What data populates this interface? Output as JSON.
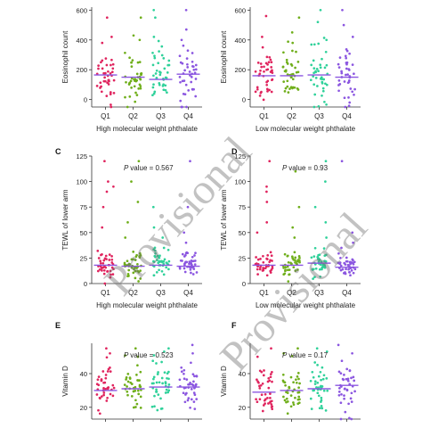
{
  "watermark": "Provisional",
  "colors": {
    "Q1": "#e0245e",
    "Q2": "#6fae1a",
    "Q3": "#2fd19a",
    "Q4": "#8b56e0",
    "median": "#8b56e0",
    "axis": "#333333"
  },
  "chart_data": [
    {
      "type": "scatter",
      "panel_letter": "",
      "xlabel": "High molecular weight phthalate",
      "ylabel": "Eosinophil count",
      "categories": [
        "Q1",
        "Q2",
        "Q3",
        "Q4"
      ],
      "yticks": [
        0,
        200,
        400,
        600
      ],
      "ylim": [
        -50,
        620
      ],
      "p_value_text": "",
      "medians": [
        165,
        150,
        135,
        170
      ],
      "centers": [
        150,
        150,
        155,
        160
      ],
      "spreads": [
        90,
        90,
        95,
        100
      ],
      "highs": [
        [
          550,
          420,
          380
        ],
        [
          550,
          430,
          400
        ],
        [
          600,
          550,
          420
        ],
        [
          600,
          470,
          400
        ]
      ]
    },
    {
      "type": "scatter",
      "panel_letter": "",
      "xlabel": "Low molecular weight phthalate",
      "ylabel": "Eosinophil count",
      "categories": [
        "Q1",
        "Q2",
        "Q3",
        "Q4"
      ],
      "yticks": [
        0,
        200,
        400,
        600
      ],
      "ylim": [
        -50,
        620
      ],
      "p_value_text": "",
      "medians": [
        160,
        160,
        165,
        150
      ],
      "centers": [
        150,
        150,
        155,
        150
      ],
      "spreads": [
        90,
        90,
        95,
        95
      ],
      "highs": [
        [
          560,
          420,
          350
        ],
        [
          550,
          450,
          380
        ],
        [
          600,
          520,
          400
        ],
        [
          600,
          500,
          420
        ]
      ]
    },
    {
      "type": "scatter",
      "panel_letter": "C",
      "xlabel": "High molecular weight phthalate",
      "ylabel": "TEWL of lower arm",
      "categories": [
        "Q1",
        "Q2",
        "Q3",
        "Q4"
      ],
      "yticks": [
        0,
        25,
        50,
        75,
        100,
        125
      ],
      "ylim": [
        0,
        125
      ],
      "p_value_text": "P value = 0.567",
      "medians": [
        18,
        17,
        18,
        17
      ],
      "centers": [
        18,
        18,
        19,
        19
      ],
      "spreads": [
        6,
        6,
        6,
        6
      ],
      "highs": [
        [
          120,
          100,
          95,
          90,
          75,
          55
        ],
        [
          120,
          100,
          80,
          60,
          45
        ],
        [
          75,
          55,
          45,
          35
        ],
        [
          120,
          75,
          50,
          40,
          30
        ]
      ]
    },
    {
      "type": "scatter",
      "panel_letter": "D",
      "xlabel": "Low molecular weight phthalate",
      "ylabel": "TEWL of lower arm",
      "categories": [
        "Q1",
        "Q2",
        "Q3",
        "Q4"
      ],
      "yticks": [
        0,
        25,
        50,
        75,
        100,
        125
      ],
      "ylim": [
        0,
        125
      ],
      "p_value_text": "P value = 0.93",
      "medians": [
        18,
        18,
        20,
        16
      ],
      "centers": [
        18,
        18,
        20,
        17
      ],
      "spreads": [
        6,
        6,
        6,
        5
      ],
      "highs": [
        [
          120,
          95,
          90,
          80,
          60,
          50
        ],
        [
          110,
          75,
          55,
          45
        ],
        [
          120,
          100,
          75,
          60,
          45
        ],
        [
          120,
          50,
          40,
          35
        ]
      ]
    },
    {
      "type": "scatter",
      "panel_letter": "E",
      "xlabel": "",
      "ylabel": "Vitamin D",
      "categories": [
        "Q1",
        "Q2",
        "Q3",
        "Q4"
      ],
      "yticks": [
        20,
        40
      ],
      "ylim": [
        13,
        58
      ],
      "p_value_text": "P value = 0.523",
      "medians": [
        30,
        31,
        32,
        32
      ],
      "centers": [
        31,
        32,
        33,
        33
      ],
      "spreads": [
        7,
        7,
        7,
        7
      ],
      "highs": [
        [
          55,
          52
        ],
        [
          55,
          50
        ],
        [
          55,
          53
        ],
        [
          57,
          52
        ]
      ]
    },
    {
      "type": "scatter",
      "panel_letter": "F",
      "xlabel": "",
      "ylabel": "Vitamin D",
      "categories": [
        "Q1",
        "Q2",
        "Q3",
        "Q4"
      ],
      "yticks": [
        20,
        40
      ],
      "ylim": [
        13,
        58
      ],
      "p_value_text": "P value = 0.17",
      "medians": [
        29,
        30,
        31,
        33
      ],
      "centers": [
        30,
        31,
        32,
        33
      ],
      "spreads": [
        7,
        7,
        7,
        7
      ],
      "highs": [
        [
          55,
          50
        ],
        [
          55,
          52
        ],
        [
          55,
          53
        ],
        [
          57,
          52
        ]
      ]
    }
  ]
}
